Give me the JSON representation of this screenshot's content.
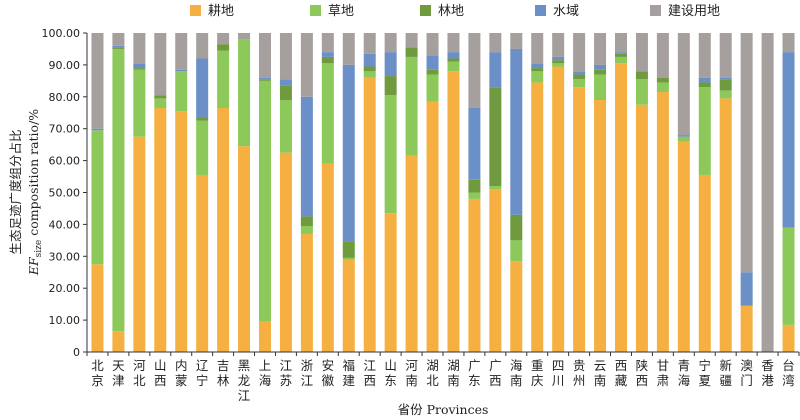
{
  "chart_data": {
    "type": "bar",
    "stacked": true,
    "xlabel": "省份 Provinces",
    "ylabel_cn": "生态足迹广度组分占比",
    "ylabel_en_main": "EF",
    "ylabel_en_sub": "size",
    "ylabel_en_rest": " composition ratio/%",
    "ylim": [
      0,
      100
    ],
    "yticks": [
      "0",
      "10.00",
      "20.00",
      "30.00",
      "40.00",
      "50.00",
      "60.00",
      "70.00",
      "80.00",
      "90.00",
      "100.00"
    ],
    "ytick_values": [
      0,
      10,
      20,
      30,
      40,
      50,
      60,
      70,
      80,
      90,
      100
    ],
    "legend_position": "top",
    "categories": [
      "北京",
      "天津",
      "河北",
      "山西",
      "内蒙",
      "辽宁",
      "吉林",
      "黑龙江",
      "上海",
      "江苏",
      "浙江",
      "安徽",
      "福建",
      "江西",
      "山东",
      "河南",
      "湖北",
      "湖南",
      "广东",
      "广西",
      "海南",
      "重庆",
      "四川",
      "贵州",
      "云南",
      "西藏",
      "陕西",
      "甘肃",
      "青海",
      "宁夏",
      "新疆",
      "澳门",
      "香港",
      "台湾"
    ],
    "series": [
      {
        "name": "耕地",
        "color": "#f5b041",
        "values": [
          27.5,
          6.5,
          67.5,
          76.5,
          75.5,
          55.5,
          76.5,
          64.5,
          9.5,
          62.5,
          37.0,
          59.0,
          29.0,
          86.0,
          43.5,
          61.5,
          78.5,
          88.0,
          48.0,
          51.0,
          28.5,
          84.5,
          89.5,
          83.0,
          79.0,
          90.5,
          77.5,
          81.5,
          66.0,
          55.5,
          79.5,
          14.5,
          0,
          8.5
        ]
      },
      {
        "name": "草地",
        "color": "#8dc85a",
        "values": [
          42.0,
          88.5,
          21.0,
          3.0,
          12.5,
          17.0,
          18.0,
          33.5,
          75.5,
          16.5,
          2.5,
          31.5,
          0.5,
          2.0,
          37.0,
          31.0,
          8.5,
          3.0,
          2.0,
          1.0,
          6.5,
          3.5,
          1.0,
          2.5,
          8.0,
          2.0,
          8.0,
          3.0,
          1.5,
          27.5,
          2.5,
          0,
          0,
          30.5
        ]
      },
      {
        "name": "林地",
        "color": "#6f9a3e",
        "values": [
          0,
          0.5,
          0.5,
          1.0,
          0,
          1.0,
          2.0,
          0,
          0.5,
          4.5,
          3.0,
          2.0,
          5.0,
          1.5,
          6.0,
          3.0,
          1.5,
          1.0,
          4.0,
          31.0,
          8.0,
          1.0,
          1.0,
          1.5,
          1.5,
          1.0,
          2.5,
          1.5,
          0,
          1.5,
          3.5,
          0,
          0,
          0
        ]
      },
      {
        "name": "水域",
        "color": "#6b8fc7",
        "values": [
          0.5,
          0.5,
          1.5,
          0,
          0.5,
          18.5,
          0,
          0,
          0.5,
          2.0,
          37.5,
          1.5,
          55.5,
          4.0,
          7.5,
          0,
          4.5,
          2.0,
          22.5,
          11.0,
          52.0,
          1.5,
          1.0,
          1.0,
          1.5,
          0.5,
          0,
          0,
          0.5,
          1.5,
          0.5,
          10.5,
          0,
          55.0
        ]
      },
      {
        "name": "建设用地",
        "color": "#a59f9d",
        "values": [
          30.0,
          4.0,
          9.5,
          19.5,
          11.5,
          8.0,
          3.5,
          2.0,
          14.0,
          14.5,
          20.0,
          6.0,
          10.0,
          6.5,
          6.0,
          4.5,
          7.0,
          6.0,
          23.5,
          6.0,
          5.0,
          9.5,
          7.5,
          12.0,
          10.0,
          6.0,
          12.0,
          14.0,
          32.0,
          14.0,
          14.0,
          75.0,
          100.0,
          6.0
        ]
      }
    ]
  }
}
